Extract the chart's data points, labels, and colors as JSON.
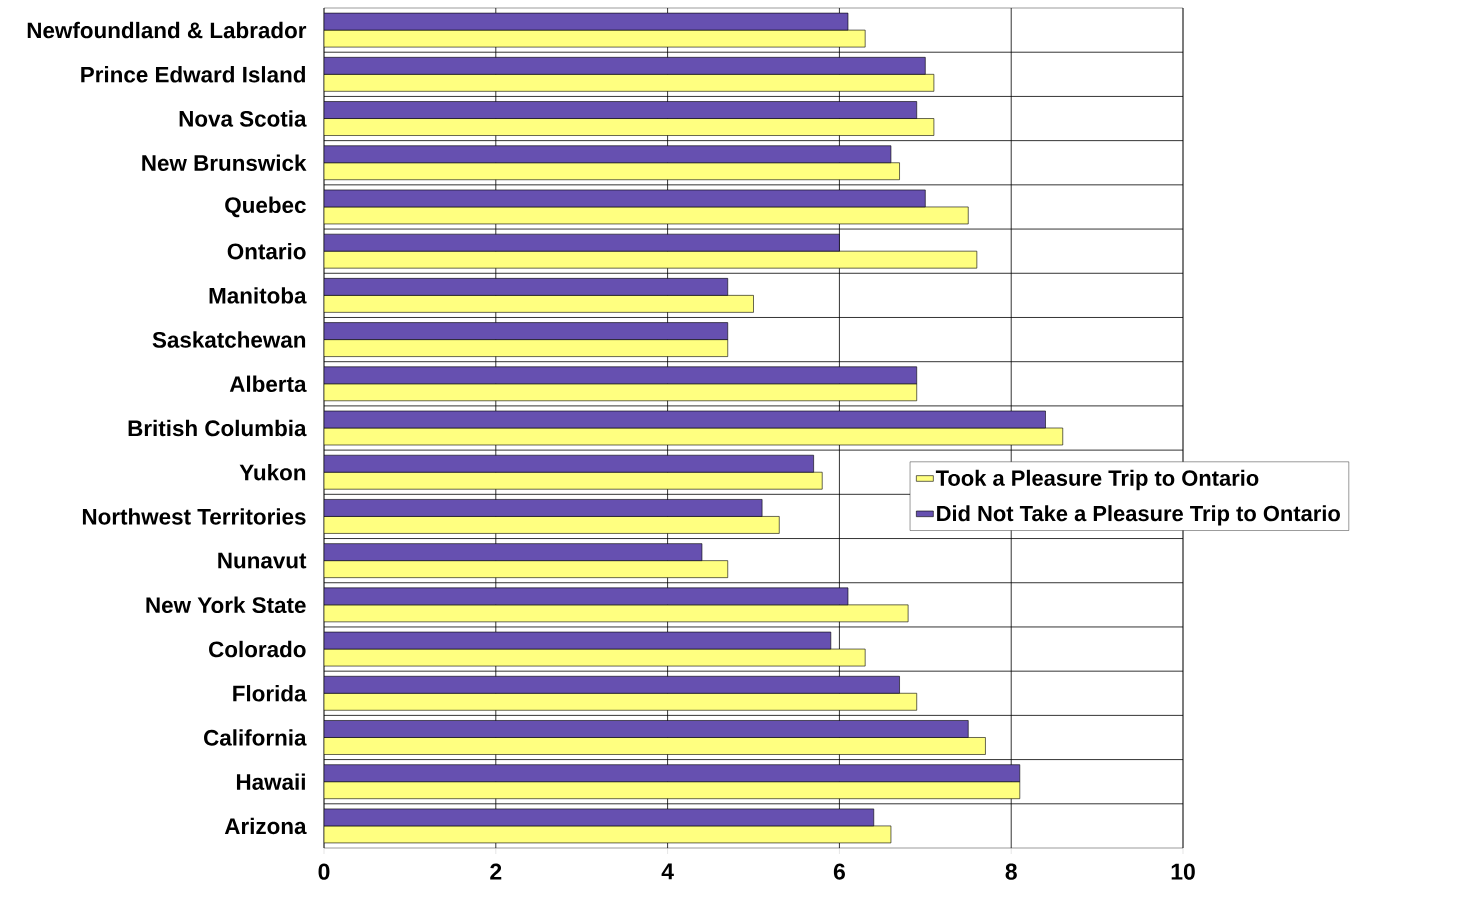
{
  "chart_data": {
    "type": "bar",
    "orientation": "horizontal",
    "categories": [
      "Newfoundland & Labrador",
      "Prince Edward Island",
      "Nova Scotia",
      "New Brunswick",
      "Quebec",
      "Ontario",
      "Manitoba",
      "Saskatchewan",
      "Alberta",
      "British Columbia",
      "Yukon",
      "Northwest Territories",
      "Nunavut",
      "New York State",
      "Colorado",
      "Florida",
      "California",
      "Hawaii",
      "Arizona"
    ],
    "series": [
      {
        "name": "Took a Pleasure Trip to Ontario",
        "color": "#ffff80",
        "values": [
          6.3,
          7.1,
          7.1,
          6.7,
          7.5,
          7.6,
          5.0,
          4.7,
          6.9,
          8.6,
          5.8,
          5.3,
          4.7,
          6.8,
          6.3,
          6.9,
          7.7,
          8.1,
          6.6
        ]
      },
      {
        "name": "Did Not Take a Pleasure Trip to Ontario",
        "color": "#6650b0",
        "values": [
          6.1,
          7.0,
          6.9,
          6.6,
          7.0,
          6.0,
          4.7,
          4.7,
          6.9,
          8.4,
          5.7,
          5.1,
          4.4,
          6.1,
          5.9,
          6.7,
          7.5,
          8.1,
          6.4
        ]
      }
    ],
    "xlim": [
      0,
      10
    ],
    "xticks": [
      0,
      2,
      4,
      6,
      8,
      10
    ],
    "grid": true,
    "legend": "right"
  }
}
